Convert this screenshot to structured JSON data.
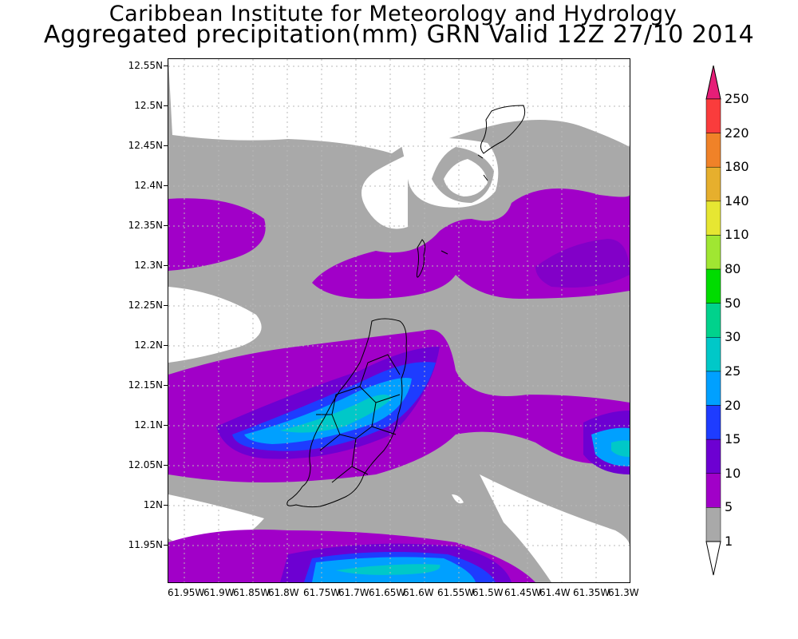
{
  "header": {
    "institute": "Caribbean Institute for Meteorology and Hydrology",
    "product": "Aggregated precipitation(mm) GRN Valid 12Z 27/10 2014"
  },
  "axes": {
    "lat_labels": [
      "12.55N",
      "12.5N",
      "12.45N",
      "12.4N",
      "12.35N",
      "12.3N",
      "12.25N",
      "12.2N",
      "12.15N",
      "12.1N",
      "12.05N",
      "12N",
      "11.95N"
    ],
    "lon_labels": [
      "61.95W",
      "61.9W",
      "61.85W",
      "61.8W",
      "61.75W",
      "61.7W",
      "61.65W",
      "61.6W",
      "61.55W",
      "61.5W",
      "61.45W",
      "61.4W",
      "61.35W",
      "61.3W"
    ]
  },
  "colorbar": {
    "thresholds": [
      "1",
      "5",
      "10",
      "15",
      "20",
      "25",
      "30",
      "50",
      "80",
      "110",
      "140",
      "180",
      "220",
      "250"
    ],
    "colors": [
      "#ffffff",
      "#a9a9a9",
      "#a100c8",
      "#6d00d2",
      "#1e3cff",
      "#00a0ff",
      "#00c8c8",
      "#00d28c",
      "#00dc00",
      "#a0e632",
      "#e6e632",
      "#e6af2d",
      "#f08228",
      "#fa3c3c",
      "#e61e78"
    ]
  },
  "map": {
    "region": "Grenada",
    "gridlines": true
  }
}
